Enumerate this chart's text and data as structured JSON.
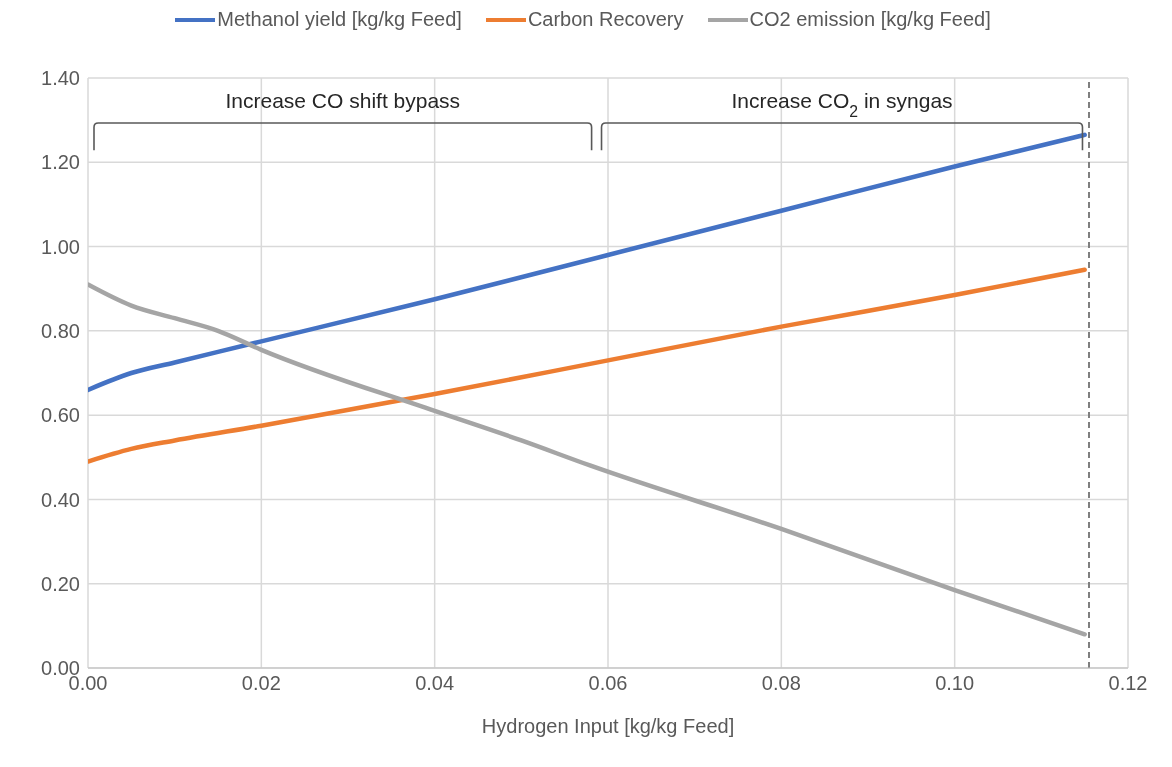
{
  "chart_data": {
    "type": "line",
    "xlabel": "Hydrogen Input [kg/kg Feed]",
    "xlim": [
      0,
      0.12
    ],
    "xticks": [
      {
        "value": 0,
        "label": "0.00"
      },
      {
        "value": 0.02,
        "label": "0.02"
      },
      {
        "value": 0.04,
        "label": "0.04"
      },
      {
        "value": 0.06,
        "label": "0.06"
      },
      {
        "value": 0.08,
        "label": "0.08"
      },
      {
        "value": 0.1,
        "label": "0.10"
      },
      {
        "value": 0.12,
        "label": "0.12"
      }
    ],
    "ylim": [
      0,
      1.4
    ],
    "yticks": [
      {
        "value": 0,
        "label": "0.00"
      },
      {
        "value": 0.2,
        "label": "0.20"
      },
      {
        "value": 0.4,
        "label": "0.40"
      },
      {
        "value": 0.6,
        "label": "0.60"
      },
      {
        "value": 0.8,
        "label": "0.80"
      },
      {
        "value": 1,
        "label": "1.00"
      },
      {
        "value": 1.2,
        "label": "1.20"
      },
      {
        "value": 1.4,
        "label": "1.40"
      }
    ],
    "grid": true,
    "legend": "top",
    "marker": "none",
    "line_style": "solid",
    "series": [
      {
        "name": "Methanol yield [kg/kg Feed]",
        "color": "#4472c4",
        "x": [
          0,
          0.005,
          0.01,
          0.02,
          0.04,
          0.06,
          0.08,
          0.1,
          0.115
        ],
        "values": [
          0.66,
          0.7,
          0.725,
          0.775,
          0.875,
          0.98,
          1.085,
          1.19,
          1.265
        ]
      },
      {
        "name": "Carbon Recovery",
        "color": "#ed7d31",
        "x": [
          0,
          0.005,
          0.01,
          0.02,
          0.04,
          0.06,
          0.08,
          0.1,
          0.115
        ],
        "values": [
          0.49,
          0.52,
          0.54,
          0.575,
          0.65,
          0.73,
          0.81,
          0.885,
          0.945
        ]
      },
      {
        "name": "CO2 emission [kg/kg Feed]",
        "color": "#a5a5a5",
        "x": [
          0,
          0.005,
          0.01,
          0.015,
          0.02,
          0.04,
          0.05,
          0.058,
          0.08,
          0.1,
          0.115
        ],
        "values": [
          0.91,
          0.86,
          0.83,
          0.8,
          0.755,
          0.61,
          0.54,
          0.48,
          0.33,
          0.185,
          0.08
        ]
      }
    ],
    "ref_lines": [
      {
        "axis": "x",
        "value": 0.1155,
        "color": "#7f7f7f",
        "line_style": "dashed"
      }
    ],
    "annotations": [
      "Increase CO shift bypass",
      "Increase CO$_{2}$ in syngas"
    ]
  }
}
